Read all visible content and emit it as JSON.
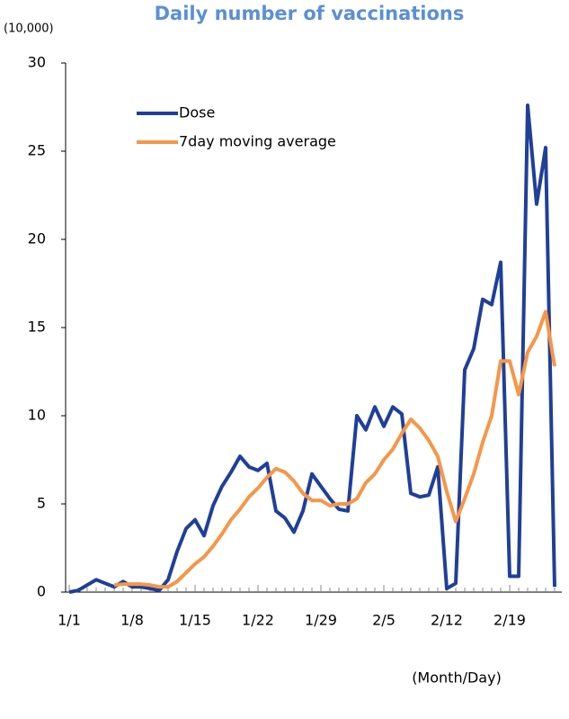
{
  "chart_data": {
    "type": "line",
    "title": "Daily number of vaccinations",
    "y_unit": "(10,000)",
    "x_label": "(Month/Day)",
    "categories": [
      "1/1",
      null,
      null,
      null,
      null,
      null,
      null,
      "1/8",
      null,
      null,
      null,
      null,
      null,
      null,
      "1/15",
      null,
      null,
      null,
      null,
      null,
      null,
      "1/22",
      null,
      null,
      null,
      null,
      null,
      null,
      "1/29",
      null,
      null,
      null,
      null,
      null,
      null,
      "2/5",
      null,
      null,
      null,
      null,
      null,
      null,
      "2/12",
      null,
      null,
      null,
      null,
      null,
      null,
      "2/19",
      null,
      null,
      null,
      null,
      null
    ],
    "series": [
      {
        "name": "Dose",
        "color": "#1f3f99",
        "values": [
          0,
          0.1,
          0.4,
          0.7,
          0.5,
          0.3,
          0.6,
          0.3,
          0.3,
          0.2,
          0.1,
          0.7,
          2.3,
          3.6,
          4.1,
          3.2,
          4.9,
          6.0,
          6.8,
          7.7,
          7.1,
          6.9,
          7.3,
          4.6,
          4.2,
          3.4,
          4.6,
          6.7,
          6.0,
          5.3,
          4.7,
          4.6,
          10.0,
          9.2,
          10.5,
          9.4,
          10.5,
          10.1,
          5.6,
          5.4,
          5.5,
          7.1,
          0.2,
          0.5,
          12.6,
          13.8,
          16.6,
          16.3,
          18.7,
          0.9,
          0.9,
          27.6,
          22.0,
          25.2,
          0.3
        ]
      },
      {
        "name": "7day moving average",
        "color": "#f79646",
        "values": [
          null,
          null,
          null,
          null,
          null,
          0.4,
          0.45,
          0.45,
          0.45,
          0.4,
          0.3,
          0.3,
          0.6,
          1.1,
          1.6,
          2.0,
          2.6,
          3.3,
          4.1,
          4.7,
          5.4,
          5.9,
          6.5,
          7.0,
          6.8,
          6.3,
          5.6,
          5.2,
          5.2,
          4.9,
          5.0,
          5.0,
          5.3,
          6.2,
          6.7,
          7.5,
          8.1,
          9.0,
          9.8,
          9.3,
          8.6,
          7.7,
          5.7,
          4.0,
          5.3,
          6.7,
          8.5,
          10.0,
          13.1,
          13.1,
          11.2,
          13.6,
          14.5,
          15.9,
          12.8
        ]
      }
    ],
    "ylim": [
      0,
      30
    ],
    "yticks": [
      0,
      5,
      10,
      15,
      20,
      25,
      30
    ],
    "grid": false,
    "legend": "upper left"
  }
}
